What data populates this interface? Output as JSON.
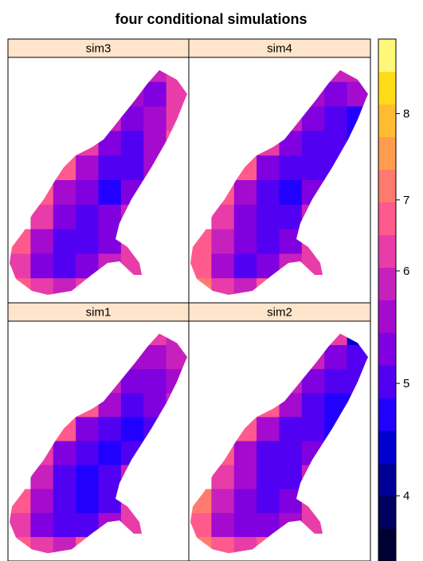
{
  "chart_data": {
    "type": "raster",
    "title": "four conditional simulations",
    "panels": [
      {
        "name": "sim3",
        "values": [
          [
            null,
            null,
            null,
            null,
            null,
            6.2,
            5.8,
            6.4
          ],
          [
            null,
            null,
            null,
            null,
            6.0,
            5.6,
            5.4,
            6.1
          ],
          [
            null,
            null,
            null,
            null,
            5.9,
            5.2,
            5.5,
            6.3
          ],
          [
            null,
            null,
            null,
            6.3,
            5.4,
            5.0,
            5.6,
            6.5
          ],
          [
            null,
            null,
            6.6,
            5.5,
            5.1,
            4.9,
            5.7,
            null
          ],
          [
            null,
            6.5,
            5.6,
            5.2,
            4.8,
            5.3,
            null,
            null
          ],
          [
            null,
            6.2,
            5.3,
            5.0,
            5.2,
            6.0,
            null,
            null
          ],
          [
            6.7,
            5.7,
            5.1,
            4.9,
            5.4,
            6.2,
            null,
            null
          ],
          [
            6.4,
            5.3,
            5.0,
            5.2,
            5.8,
            6.3,
            null,
            null
          ],
          [
            6.8,
            6.1,
            5.9,
            6.4,
            null,
            null,
            null,
            null
          ]
        ]
      },
      {
        "name": "sim4",
        "values": [
          [
            null,
            null,
            null,
            null,
            null,
            6.5,
            5.9,
            6.0
          ],
          [
            null,
            null,
            null,
            null,
            6.3,
            5.5,
            5.2,
            5.6
          ],
          [
            null,
            null,
            null,
            null,
            5.8,
            5.3,
            5.0,
            4.7
          ],
          [
            null,
            null,
            null,
            6.4,
            5.3,
            4.9,
            5.1,
            4.6
          ],
          [
            null,
            null,
            6.5,
            5.4,
            4.9,
            5.0,
            5.0,
            null
          ],
          [
            null,
            6.7,
            5.5,
            5.0,
            4.8,
            5.4,
            null,
            null
          ],
          [
            null,
            6.3,
            5.4,
            4.9,
            5.1,
            5.9,
            null,
            null
          ],
          [
            6.9,
            5.9,
            5.2,
            5.0,
            5.3,
            6.1,
            null,
            null
          ],
          [
            6.6,
            5.6,
            5.1,
            5.3,
            5.9,
            6.4,
            null,
            null
          ],
          [
            7.0,
            6.4,
            6.0,
            6.5,
            null,
            null,
            null,
            null
          ]
        ]
      },
      {
        "name": "sim1",
        "values": [
          [
            null,
            null,
            null,
            null,
            null,
            6.6,
            6.1,
            5.9
          ],
          [
            null,
            null,
            null,
            null,
            6.2,
            5.7,
            5.6,
            5.8
          ],
          [
            null,
            null,
            null,
            null,
            6.0,
            5.4,
            5.3,
            5.5
          ],
          [
            null,
            null,
            null,
            6.5,
            5.5,
            5.1,
            5.2,
            6.0
          ],
          [
            null,
            null,
            6.7,
            5.4,
            4.9,
            4.8,
            5.0,
            null
          ],
          [
            null,
            6.4,
            5.3,
            4.9,
            4.7,
            4.9,
            null,
            null
          ],
          [
            null,
            6.0,
            5.1,
            4.8,
            4.9,
            5.8,
            null,
            null
          ],
          [
            6.5,
            5.6,
            5.0,
            4.8,
            5.1,
            6.1,
            null,
            null
          ],
          [
            6.3,
            5.4,
            5.0,
            5.1,
            5.6,
            6.2,
            null,
            null
          ],
          [
            6.9,
            6.2,
            6.0,
            6.5,
            null,
            null,
            null,
            null
          ]
        ]
      },
      {
        "name": "sim2",
        "values": [
          [
            null,
            null,
            null,
            null,
            null,
            6.4,
            6.2,
            4.3
          ],
          [
            null,
            null,
            null,
            null,
            6.1,
            5.8,
            5.3,
            5.1
          ],
          [
            null,
            null,
            null,
            null,
            6.0,
            5.4,
            5.0,
            4.9
          ],
          [
            null,
            null,
            null,
            6.6,
            5.6,
            5.0,
            4.8,
            4.6
          ],
          [
            null,
            null,
            6.8,
            5.6,
            5.0,
            4.9,
            4.7,
            null
          ],
          [
            null,
            6.6,
            5.7,
            5.1,
            4.9,
            5.2,
            null,
            null
          ],
          [
            null,
            6.4,
            5.5,
            5.1,
            5.0,
            5.9,
            null,
            null
          ],
          [
            7.0,
            6.0,
            5.3,
            5.0,
            5.2,
            6.2,
            null,
            null
          ],
          [
            6.8,
            5.7,
            5.2,
            5.2,
            5.7,
            6.4,
            null,
            null
          ],
          [
            7.2,
            6.5,
            6.1,
            6.6,
            null,
            null,
            null,
            null
          ]
        ]
      }
    ],
    "colorkey": {
      "breaks": [
        3.1,
        3.6,
        4.0,
        4.3,
        4.6,
        4.88,
        5.15,
        5.45,
        5.75,
        6.03,
        6.5,
        6.97,
        7.4,
        7.75,
        8.1,
        8.45,
        8.8
      ],
      "colors": [
        "#000033",
        "#00005E",
        "#000096",
        "#0000CE",
        "#2200FE",
        "#5200F1",
        "#8000E0",
        "#A40BCE",
        "#C721BD",
        "#E83CA8",
        "#FF5A8D",
        "#FF7B6E",
        "#FF9C4E",
        "#FFBC31",
        "#FFDC1A",
        "#FFF77A"
      ],
      "ticks": [
        4,
        5,
        6,
        7,
        8
      ]
    }
  }
}
